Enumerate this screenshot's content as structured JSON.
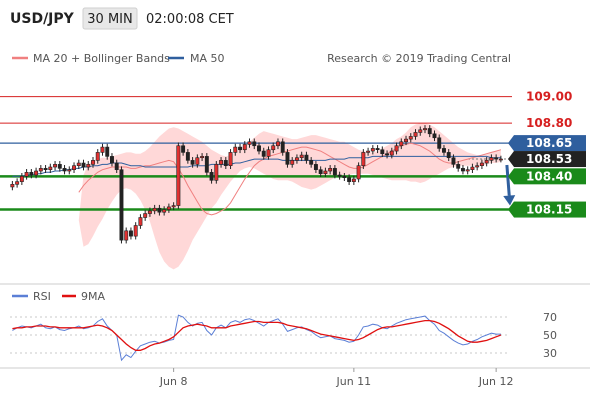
{
  "header": {
    "symbol": "USD/JPY",
    "interval": "30 MIN",
    "time": "02:00:08 CET"
  },
  "legend": {
    "items": [
      {
        "label": "MA 20 + Bollinger Bands",
        "color": "#f08080"
      },
      {
        "label": "MA 50",
        "color": "#2f5f9e"
      }
    ],
    "copyright": "Research © 2019 Trading Central"
  },
  "colors": {
    "resistance": "#d62020",
    "support": "#1a8a1a",
    "pivot": "#2f5f9e",
    "candle_up": "#e03030",
    "candle_down": "#e03030",
    "bb_fill": "#ffd8d8",
    "rsi": "#5b7fd6",
    "rsi_ma": "#e01010",
    "arrow": "#2f5f9e",
    "current_label": "#222222"
  },
  "chart_data": [
    {
      "type": "candlestick",
      "title": "",
      "ylim": [
        107.62,
        109.2
      ],
      "x_ticks": [
        {
          "label": "Jun 8",
          "index": 34
        },
        {
          "label": "Jun 11",
          "index": 72
        },
        {
          "label": "Jun 12",
          "index": 102
        }
      ],
      "levels": [
        {
          "value": 109.0,
          "label": "109.00",
          "kind": "resistance"
        },
        {
          "value": 108.8,
          "label": "108.80",
          "kind": "resistance"
        },
        {
          "value": 108.65,
          "label": "108.65",
          "kind": "pivot"
        },
        {
          "value": 108.53,
          "label": "108.53",
          "kind": "current"
        },
        {
          "value": 108.4,
          "label": "108.40",
          "kind": "support"
        },
        {
          "value": 108.15,
          "label": "108.15",
          "kind": "support"
        }
      ],
      "close": [
        108.34,
        108.36,
        108.4,
        108.43,
        108.41,
        108.44,
        108.46,
        108.45,
        108.47,
        108.49,
        108.46,
        108.44,
        108.45,
        108.48,
        108.5,
        108.47,
        108.49,
        108.52,
        108.58,
        108.62,
        108.55,
        108.5,
        108.45,
        107.92,
        107.99,
        107.95,
        108.03,
        108.09,
        108.12,
        108.14,
        108.16,
        108.13,
        108.15,
        108.17,
        108.18,
        108.63,
        108.58,
        108.52,
        108.49,
        108.54,
        108.55,
        108.43,
        108.37,
        108.49,
        108.52,
        108.48,
        108.58,
        108.62,
        108.6,
        108.64,
        108.66,
        108.63,
        108.59,
        108.55,
        108.6,
        108.63,
        108.66,
        108.58,
        108.49,
        108.52,
        108.54,
        108.56,
        108.52,
        108.49,
        108.45,
        108.42,
        108.44,
        108.46,
        108.41,
        108.4,
        108.39,
        108.36,
        108.38,
        108.48,
        108.58,
        108.59,
        108.61,
        108.6,
        108.57,
        108.56,
        108.59,
        108.63,
        108.66,
        108.68,
        108.7,
        108.73,
        108.75,
        108.76,
        108.72,
        108.69,
        108.61,
        108.58,
        108.54,
        108.49,
        108.46,
        108.44,
        108.45,
        108.47,
        108.48,
        108.5,
        108.52,
        108.54,
        108.53,
        108.53
      ],
      "ma20": [
        108.28,
        108.33,
        108.37,
        108.4,
        108.43,
        108.45,
        108.46,
        108.47,
        108.47,
        108.47,
        108.47,
        108.46,
        108.46,
        108.47,
        108.48,
        108.48,
        108.49,
        108.5,
        108.51,
        108.52,
        108.51,
        108.46,
        108.4,
        108.33,
        108.27,
        108.21,
        108.15,
        108.12,
        108.11,
        108.12,
        108.14,
        108.16,
        108.2,
        108.26,
        108.32,
        108.38,
        108.43,
        108.48,
        108.51,
        108.53,
        108.55,
        108.56,
        108.57,
        108.58,
        108.59,
        108.6,
        108.61,
        108.62,
        108.62,
        108.61,
        108.6,
        108.59,
        108.57,
        108.55,
        108.53,
        108.51,
        108.49,
        108.47,
        108.46,
        108.46,
        108.47,
        108.49,
        108.51,
        108.53,
        108.55,
        108.57,
        108.59,
        108.61,
        108.63,
        108.64,
        108.65,
        108.64,
        108.63,
        108.61,
        108.59,
        108.56,
        108.53,
        108.51,
        108.5,
        108.5,
        108.51,
        108.52,
        108.53,
        108.54,
        108.55,
        108.56,
        108.57,
        108.58,
        108.59,
        108.6
      ],
      "bb_upper": [
        108.07,
        108.41,
        108.49,
        108.52,
        108.53,
        108.54,
        108.54,
        108.55,
        108.56,
        108.57,
        108.58,
        108.58,
        108.57,
        108.57,
        108.59,
        108.62,
        108.66,
        108.7,
        108.73,
        108.76,
        108.77,
        108.76,
        108.74,
        108.72,
        108.7,
        108.68,
        108.66,
        108.63,
        108.6,
        108.58,
        108.56,
        108.55,
        108.56,
        108.58,
        108.61,
        108.63,
        108.66,
        108.69,
        108.72,
        108.74,
        108.73,
        108.72,
        108.71,
        108.7,
        108.69,
        108.68,
        108.68,
        108.69,
        108.7,
        108.71,
        108.71,
        108.7,
        108.69,
        108.68,
        108.67,
        108.66,
        108.66,
        108.64,
        108.62,
        108.6,
        108.59,
        108.58,
        108.58,
        108.59,
        108.61,
        108.63,
        108.65,
        108.68,
        108.7,
        108.73,
        108.77,
        108.79,
        108.8,
        108.8,
        108.79,
        108.77,
        108.74,
        108.71,
        108.68,
        108.65,
        108.62,
        108.6,
        108.58,
        108.57,
        108.56,
        108.56,
        108.57,
        108.58,
        108.59,
        108.6
      ],
      "bb_lower": [
        108.07,
        107.87,
        107.89,
        107.95,
        108.02,
        108.08,
        108.15,
        108.21,
        108.26,
        108.3,
        108.31,
        108.3,
        108.27,
        108.22,
        108.15,
        108.06,
        107.94,
        107.83,
        107.76,
        107.72,
        107.7,
        107.72,
        107.77,
        107.84,
        107.92,
        107.98,
        108.04,
        108.1,
        108.16,
        108.2,
        108.26,
        108.31,
        108.36,
        108.4,
        108.44,
        108.46,
        108.47,
        108.46,
        108.44,
        108.42,
        108.4,
        108.38,
        108.37,
        108.37,
        108.37,
        108.36,
        108.34,
        108.32,
        108.31,
        108.3,
        108.31,
        108.33,
        108.35,
        108.37,
        108.39,
        108.4,
        108.41,
        108.41,
        108.42,
        108.42,
        108.42,
        108.42,
        108.41,
        108.4,
        108.39,
        108.38,
        108.37,
        108.37,
        108.37,
        108.37,
        108.36,
        108.36,
        108.35,
        108.36,
        108.38,
        108.4,
        108.42,
        108.44,
        108.46,
        108.47,
        108.48,
        108.48,
        108.48,
        108.48,
        108.48,
        108.48,
        108.49,
        108.5,
        108.5,
        108.51
      ],
      "ma50": [
        108.4,
        108.4,
        108.4,
        108.41,
        108.41,
        108.42,
        108.42,
        108.43,
        108.43,
        108.44,
        108.44,
        108.45,
        108.45,
        108.46,
        108.46,
        108.47,
        108.47,
        108.48,
        108.48,
        108.49,
        108.49,
        108.5,
        108.5,
        108.5,
        108.49,
        108.48,
        108.48,
        108.48,
        108.47,
        108.47,
        108.47,
        108.47,
        108.47,
        108.47,
        108.47,
        108.47,
        108.47,
        108.47,
        108.48,
        108.48,
        108.48,
        108.48,
        108.49,
        108.49,
        108.49,
        108.49,
        108.49,
        108.5,
        108.5,
        108.51,
        108.52,
        108.53,
        108.53,
        108.53,
        108.53,
        108.53,
        108.53,
        108.52,
        108.52,
        108.52,
        108.52,
        108.52,
        108.52,
        108.52,
        108.52,
        108.52,
        108.52,
        108.53,
        108.53,
        108.53,
        108.53,
        108.54,
        108.54,
        108.54,
        108.54,
        108.54,
        108.55,
        108.55,
        108.55,
        108.55,
        108.55,
        108.55,
        108.55,
        108.55,
        108.55,
        108.55,
        108.55,
        108.55,
        108.55,
        108.55,
        108.55,
        108.55,
        108.55,
        108.55,
        108.55,
        108.55,
        108.55,
        108.55,
        108.55,
        108.55,
        108.55,
        108.54,
        108.54,
        108.54
      ]
    },
    {
      "type": "line",
      "title": "",
      "series": [
        {
          "name": "RSI",
          "color": "#5b7fd6",
          "values": [
            55,
            58,
            60,
            59,
            58,
            60,
            62,
            58,
            57,
            59,
            56,
            55,
            57,
            58,
            60,
            57,
            58,
            60,
            65,
            68,
            60,
            55,
            50,
            22,
            28,
            25,
            32,
            38,
            40,
            42,
            43,
            41,
            42,
            44,
            45,
            72,
            70,
            64,
            60,
            63,
            64,
            55,
            50,
            58,
            61,
            58,
            64,
            66,
            64,
            67,
            68,
            66,
            63,
            60,
            64,
            66,
            68,
            62,
            54,
            56,
            58,
            59,
            56,
            54,
            50,
            47,
            48,
            49,
            46,
            45,
            44,
            42,
            43,
            50,
            59,
            60,
            62,
            61,
            58,
            57,
            60,
            63,
            65,
            67,
            68,
            69,
            70,
            71,
            66,
            62,
            55,
            52,
            48,
            44,
            41,
            39,
            40,
            43,
            45,
            48,
            50,
            52,
            51,
            51
          ]
        },
        {
          "name": "9MA",
          "color": "#e01010",
          "values": [
            57,
            58,
            58,
            59,
            59,
            60,
            60,
            60,
            59,
            59,
            58,
            58,
            58,
            58,
            58,
            58,
            59,
            60,
            61,
            60,
            58,
            55,
            50,
            45,
            40,
            36,
            33,
            33,
            35,
            38,
            40,
            41,
            43,
            45,
            48,
            53,
            58,
            60,
            61,
            62,
            61,
            60,
            58,
            58,
            58,
            58,
            60,
            61,
            62,
            63,
            64,
            65,
            65,
            64,
            64,
            64,
            64,
            63,
            61,
            60,
            59,
            58,
            57,
            55,
            53,
            51,
            50,
            49,
            48,
            47,
            46,
            45,
            44,
            45,
            47,
            50,
            53,
            56,
            58,
            59,
            59,
            60,
            61,
            62,
            63,
            64,
            65,
            66,
            66,
            65,
            63,
            60,
            57,
            53,
            49,
            46,
            43,
            42,
            42,
            43,
            44,
            46,
            48,
            50
          ]
        }
      ],
      "ylim": [
        20,
        80
      ],
      "y_ticks": [
        30,
        50,
        70
      ],
      "grid": true,
      "legend_position": "top-left"
    }
  ]
}
